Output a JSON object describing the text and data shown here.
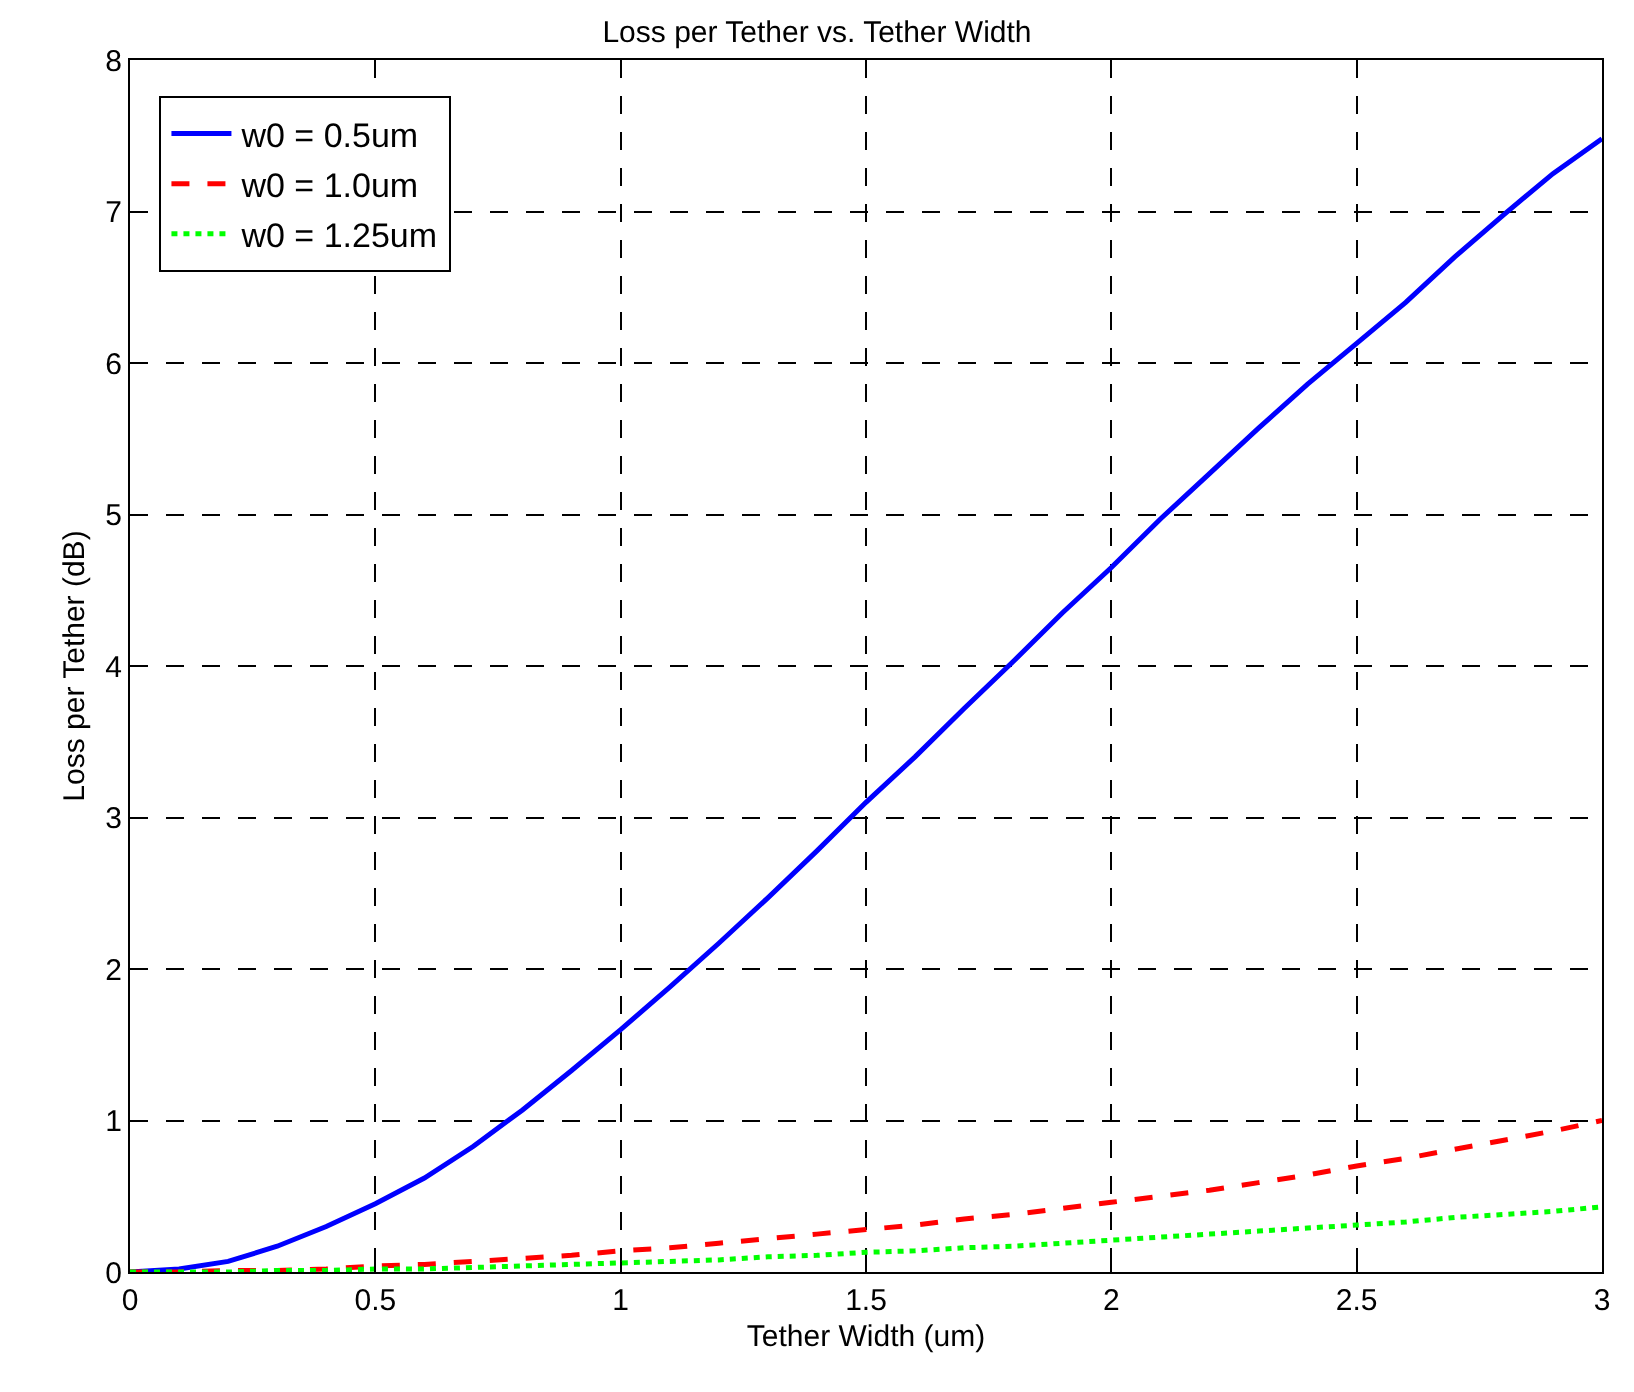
{
  "chart_data": {
    "type": "line",
    "title": "Loss per Tether vs. Tether Width",
    "xlabel": "Tether Width (um)",
    "ylabel": "Loss per Tether (dB)",
    "x": [
      0,
      0.1,
      0.2,
      0.3,
      0.4,
      0.5,
      0.6,
      0.7,
      0.8,
      0.9,
      1.0,
      1.1,
      1.2,
      1.3,
      1.4,
      1.5,
      1.6,
      1.7,
      1.8,
      1.9,
      2.0,
      2.1,
      2.2,
      2.3,
      2.4,
      2.5,
      2.6,
      2.7,
      2.8,
      2.9,
      3.0
    ],
    "series": [
      {
        "name": "w0 = 0.5um",
        "color": "#0000ff",
        "line_style": "solid",
        "values": [
          0,
          0.02,
          0.07,
          0.17,
          0.3,
          0.45,
          0.62,
          0.83,
          1.07,
          1.33,
          1.6,
          1.88,
          2.17,
          2.47,
          2.78,
          3.1,
          3.4,
          3.72,
          4.03,
          4.35,
          4.65,
          4.97,
          5.27,
          5.57,
          5.86,
          6.13,
          6.4,
          6.7,
          6.98,
          7.25,
          7.48
        ]
      },
      {
        "name": "w0 = 1.0um",
        "color": "#ff0000",
        "line_style": "dashed",
        "values": [
          0,
          0.0,
          0.01,
          0.01,
          0.02,
          0.04,
          0.05,
          0.07,
          0.09,
          0.11,
          0.14,
          0.16,
          0.19,
          0.22,
          0.25,
          0.28,
          0.31,
          0.35,
          0.38,
          0.42,
          0.46,
          0.5,
          0.54,
          0.59,
          0.64,
          0.7,
          0.75,
          0.81,
          0.87,
          0.93,
          1.0
        ]
      },
      {
        "name": "w0 = 1.25um",
        "color": "#00ff00",
        "line_style": "dotted",
        "values": [
          0,
          0.0,
          0.0,
          0.01,
          0.01,
          0.02,
          0.02,
          0.03,
          0.04,
          0.05,
          0.06,
          0.07,
          0.08,
          0.1,
          0.11,
          0.13,
          0.14,
          0.16,
          0.17,
          0.19,
          0.21,
          0.23,
          0.25,
          0.27,
          0.29,
          0.31,
          0.33,
          0.36,
          0.38,
          0.4,
          0.43
        ]
      }
    ],
    "xlim": [
      0,
      3
    ],
    "xticks": [
      0,
      0.5,
      1,
      1.5,
      2,
      2.5,
      3
    ],
    "ylim": [
      0,
      8
    ],
    "yticks": [
      0,
      1,
      2,
      3,
      4,
      5,
      6,
      7,
      8
    ],
    "grid": true,
    "legend": "top left",
    "marker": "none"
  }
}
